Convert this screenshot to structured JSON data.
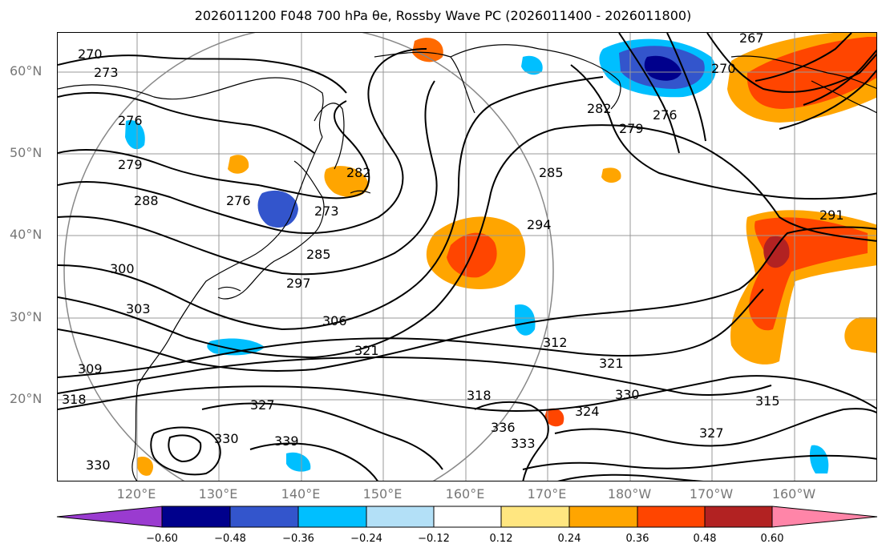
{
  "title": "2026011200 F048 700 hPa θe, Rossby Wave PC (2026011400 - 2026011800)",
  "lat_labels": [
    "60°N",
    "50°N",
    "40°N",
    "30°N",
    "20°N"
  ],
  "lon_labels": [
    "120°E",
    "130°E",
    "140°E",
    "150°E",
    "160°E",
    "170°E",
    "180°W",
    "170°W",
    "160°W"
  ],
  "colorbar": {
    "ticks": [
      "−0.60",
      "−0.48",
      "−0.36",
      "−0.24",
      "−0.12",
      "0.12",
      "0.24",
      "0.36",
      "0.48",
      "0.60"
    ],
    "colors": [
      "#9a3bd0",
      "#00008c",
      "#3355cc",
      "#00bfff",
      "#b3e0f7",
      "#ffffff",
      "#ffe680",
      "#ffa500",
      "#ff4500",
      "#b22222",
      "#ff85a8"
    ]
  },
  "contour_labels": [
    "270",
    "273",
    "276",
    "279",
    "288",
    "276",
    "273",
    "282",
    "285",
    "294",
    "297",
    "300",
    "303",
    "306",
    "309",
    "318",
    "321",
    "312",
    "321",
    "315",
    "318",
    "324",
    "327",
    "330",
    "333",
    "336",
    "339",
    "330",
    "291",
    "267",
    "270",
    "282",
    "279",
    "276",
    "285",
    "327",
    "330"
  ]
}
